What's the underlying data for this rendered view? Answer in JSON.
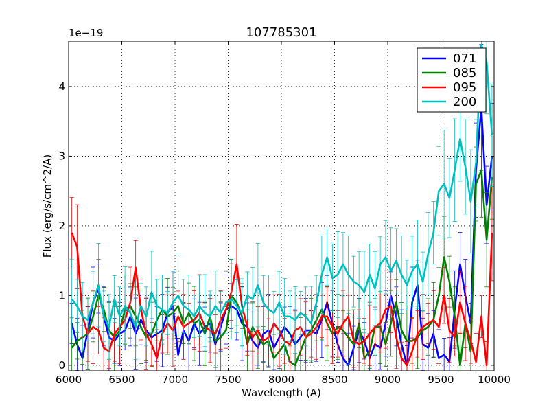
{
  "chart_data": {
    "type": "line",
    "title": "107785301",
    "xlabel": "Wavelength (A)",
    "ylabel": "Flux (erg/s/cm^2/A)",
    "offset_text": "1e−19",
    "xlim": [
      6000,
      10000
    ],
    "ylim": [
      -0.08,
      4.65
    ],
    "xticks": [
      6000,
      6500,
      7000,
      7500,
      8000,
      8500,
      9000,
      9500,
      10000
    ],
    "yticks": [
      0,
      1,
      2,
      3,
      4
    ],
    "grid": true,
    "legend_position": "top-right",
    "series": [
      {
        "name": "071",
        "color": "#0000ff",
        "x": [
          6030,
          6080,
          6130,
          6180,
          6230,
          6280,
          6330,
          6380,
          6430,
          6480,
          6530,
          6580,
          6630,
          6680,
          6730,
          6780,
          6830,
          6880,
          6930,
          6980,
          7030,
          7080,
          7130,
          7180,
          7230,
          7280,
          7330,
          7380,
          7430,
          7480,
          7530,
          7580,
          7630,
          7680,
          7730,
          7780,
          7830,
          7880,
          7930,
          7980,
          8030,
          8080,
          8130,
          8180,
          8230,
          8280,
          8330,
          8380,
          8430,
          8480,
          8530,
          8580,
          8630,
          8680,
          8730,
          8780,
          8830,
          8880,
          8930,
          8980,
          9030,
          9080,
          9130,
          9180,
          9230,
          9280,
          9330,
          9380,
          9430,
          9480,
          9530,
          9580,
          9630,
          9680,
          9730,
          9780,
          9830,
          9880,
          9930,
          9980
        ],
        "values": [
          0.6,
          0.3,
          0.1,
          0.5,
          0.9,
          1.1,
          0.7,
          0.4,
          0.35,
          0.45,
          0.5,
          0.7,
          0.45,
          0.65,
          0.5,
          0.4,
          0.45,
          0.5,
          0.75,
          0.85,
          0.15,
          0.5,
          0.35,
          0.6,
          0.45,
          0.55,
          0.6,
          0.3,
          0.55,
          0.8,
          0.85,
          0.8,
          0.6,
          0.55,
          0.35,
          0.25,
          0.45,
          0.5,
          0.25,
          0.4,
          0.55,
          0.45,
          0.3,
          0.4,
          0.5,
          0.5,
          0.45,
          0.65,
          0.9,
          0.6,
          0.3,
          0.1,
          0.0,
          0.25,
          0.5,
          0.35,
          0.1,
          0.3,
          0.25,
          0.6,
          1.0,
          0.7,
          0.3,
          0.0,
          0.9,
          1.15,
          0.3,
          0.25,
          0.45,
          0.1,
          0.15,
          0.05,
          0.8,
          1.45,
          1.0,
          0.6,
          2.8,
          3.7,
          2.3,
          3.0
        ]
      },
      {
        "name": "085",
        "color": "#008000",
        "x": [
          6030,
          6080,
          6130,
          6180,
          6230,
          6280,
          6330,
          6380,
          6430,
          6480,
          6530,
          6580,
          6630,
          6680,
          6730,
          6780,
          6830,
          6880,
          6930,
          6980,
          7030,
          7080,
          7130,
          7180,
          7230,
          7280,
          7330,
          7380,
          7430,
          7480,
          7530,
          7580,
          7630,
          7680,
          7730,
          7780,
          7830,
          7880,
          7930,
          7980,
          8030,
          8080,
          8130,
          8180,
          8230,
          8280,
          8330,
          8380,
          8430,
          8480,
          8530,
          8580,
          8630,
          8680,
          8730,
          8780,
          8830,
          8880,
          8930,
          8980,
          9030,
          9080,
          9130,
          9180,
          9230,
          9280,
          9330,
          9380,
          9430,
          9480,
          9530,
          9580,
          9630,
          9680,
          9730,
          9780,
          9830,
          9880,
          9930,
          9980
        ],
        "values": [
          0.25,
          0.35,
          0.4,
          0.45,
          0.7,
          1.0,
          0.8,
          0.5,
          0.4,
          0.5,
          0.8,
          0.85,
          0.7,
          0.55,
          0.4,
          0.45,
          0.65,
          0.8,
          0.7,
          0.75,
          0.85,
          0.6,
          0.75,
          0.6,
          0.65,
          0.45,
          0.7,
          0.35,
          0.4,
          0.5,
          1.0,
          0.9,
          0.7,
          0.3,
          0.55,
          0.4,
          0.3,
          0.35,
          0.1,
          0.2,
          0.3,
          0.05,
          0.0,
          0.2,
          0.4,
          0.5,
          0.65,
          0.8,
          0.6,
          0.45,
          0.55,
          0.5,
          0.4,
          0.3,
          0.6,
          0.1,
          0.2,
          0.55,
          0.55,
          0.3,
          0.6,
          0.9,
          0.5,
          0.35,
          0.35,
          0.4,
          0.5,
          0.55,
          0.65,
          1.0,
          1.55,
          1.2,
          0.7,
          0.0,
          0.6,
          0.2,
          2.6,
          2.8,
          1.8,
          2.7
        ]
      },
      {
        "name": "095",
        "color": "#ff0000",
        "x": [
          6030,
          6080,
          6130,
          6180,
          6230,
          6280,
          6330,
          6380,
          6430,
          6480,
          6530,
          6580,
          6630,
          6680,
          6730,
          6780,
          6830,
          6880,
          6930,
          6980,
          7030,
          7080,
          7130,
          7180,
          7230,
          7280,
          7330,
          7380,
          7430,
          7480,
          7530,
          7580,
          7630,
          7680,
          7730,
          7780,
          7830,
          7880,
          7930,
          7980,
          8030,
          8080,
          8130,
          8180,
          8230,
          8280,
          8330,
          8380,
          8430,
          8480,
          8530,
          8580,
          8630,
          8680,
          8730,
          8780,
          8830,
          8880,
          8930,
          8980,
          9030,
          9080,
          9130,
          9180,
          9230,
          9280,
          9330,
          9380,
          9430,
          9480,
          9530,
          9580,
          9630,
          9680,
          9730,
          9780,
          9830,
          9880,
          9930,
          9980
        ],
        "values": [
          1.9,
          1.7,
          0.7,
          0.45,
          0.55,
          0.5,
          0.25,
          0.2,
          0.45,
          0.55,
          0.65,
          0.9,
          1.4,
          0.8,
          0.45,
          0.3,
          0.1,
          0.45,
          0.6,
          0.5,
          0.7,
          0.55,
          0.6,
          0.65,
          0.75,
          0.55,
          0.5,
          0.45,
          0.65,
          0.8,
          1.05,
          1.45,
          0.85,
          0.55,
          0.4,
          0.5,
          0.35,
          0.4,
          0.6,
          0.5,
          0.35,
          0.3,
          0.5,
          0.55,
          0.4,
          0.45,
          0.55,
          0.7,
          0.7,
          0.55,
          0.45,
          0.6,
          0.7,
          0.35,
          0.3,
          0.35,
          0.45,
          0.55,
          0.6,
          0.8,
          0.85,
          0.4,
          0.1,
          0.0,
          0.2,
          0.45,
          0.55,
          0.6,
          0.65,
          0.55,
          1.0,
          0.5,
          0.4,
          0.9,
          0.6,
          0.35,
          0.05,
          0.7,
          0.0,
          1.9
        ]
      },
      {
        "name": "200",
        "color": "#00bfbf",
        "x": [
          6030,
          6080,
          6130,
          6180,
          6230,
          6280,
          6330,
          6380,
          6430,
          6480,
          6530,
          6580,
          6630,
          6680,
          6730,
          6780,
          6830,
          6880,
          6930,
          6980,
          7030,
          7080,
          7130,
          7180,
          7230,
          7280,
          7330,
          7380,
          7430,
          7480,
          7530,
          7580,
          7630,
          7680,
          7730,
          7780,
          7830,
          7880,
          7930,
          7980,
          8030,
          8080,
          8130,
          8180,
          8230,
          8280,
          8330,
          8380,
          8430,
          8480,
          8530,
          8580,
          8630,
          8680,
          8730,
          8780,
          8830,
          8880,
          8930,
          8980,
          9030,
          9080,
          9130,
          9180,
          9230,
          9280,
          9330,
          9380,
          9430,
          9480,
          9530,
          9580,
          9630,
          9680,
          9730,
          9780,
          9830,
          9880,
          9930,
          9980
        ],
        "values": [
          0.95,
          0.85,
          0.7,
          0.65,
          0.9,
          1.15,
          0.7,
          0.55,
          0.95,
          0.7,
          0.85,
          0.75,
          0.55,
          0.85,
          0.7,
          1.05,
          0.85,
          0.8,
          0.75,
          0.9,
          1.0,
          0.85,
          0.8,
          0.7,
          0.85,
          0.75,
          0.7,
          0.85,
          0.75,
          0.9,
          0.95,
          0.85,
          0.75,
          1.0,
          0.95,
          1.15,
          0.9,
          0.8,
          0.75,
          0.9,
          0.7,
          0.7,
          0.65,
          0.75,
          0.7,
          0.6,
          0.9,
          1.3,
          1.55,
          1.25,
          1.3,
          1.45,
          1.3,
          1.2,
          1.15,
          1.05,
          1.3,
          1.1,
          1.45,
          1.55,
          1.35,
          1.5,
          1.3,
          1.15,
          1.35,
          1.45,
          1.2,
          1.6,
          1.9,
          2.5,
          2.6,
          2.4,
          2.8,
          3.25,
          2.85,
          2.35,
          2.9,
          4.6,
          4.35,
          3.3
        ]
      }
    ]
  }
}
